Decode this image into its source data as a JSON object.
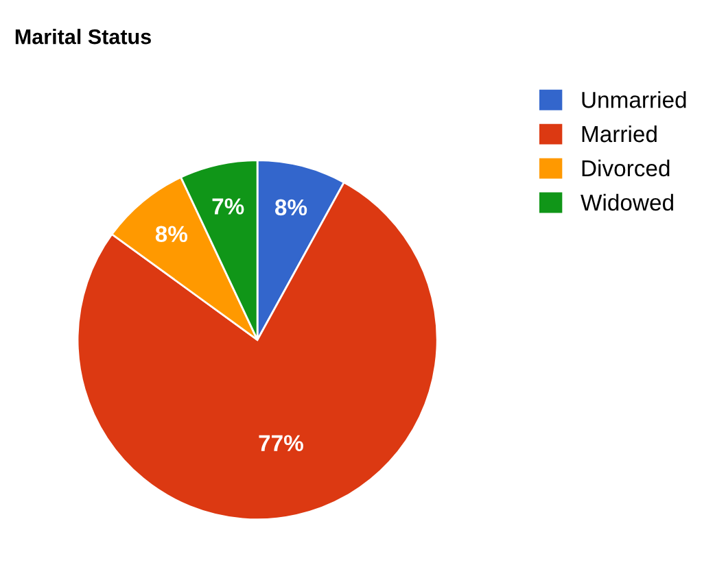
{
  "chart_data": {
    "type": "pie",
    "title": "Marital Status",
    "categories": [
      "Unmarried",
      "Married",
      "Divorced",
      "Widowed"
    ],
    "values": [
      8,
      77,
      8,
      7
    ],
    "colors": [
      "#3366cc",
      "#dc3912",
      "#ff9900",
      "#109618"
    ],
    "value_labels": [
      "8%",
      "77%",
      "8%",
      "7%"
    ],
    "legend": "top right"
  }
}
